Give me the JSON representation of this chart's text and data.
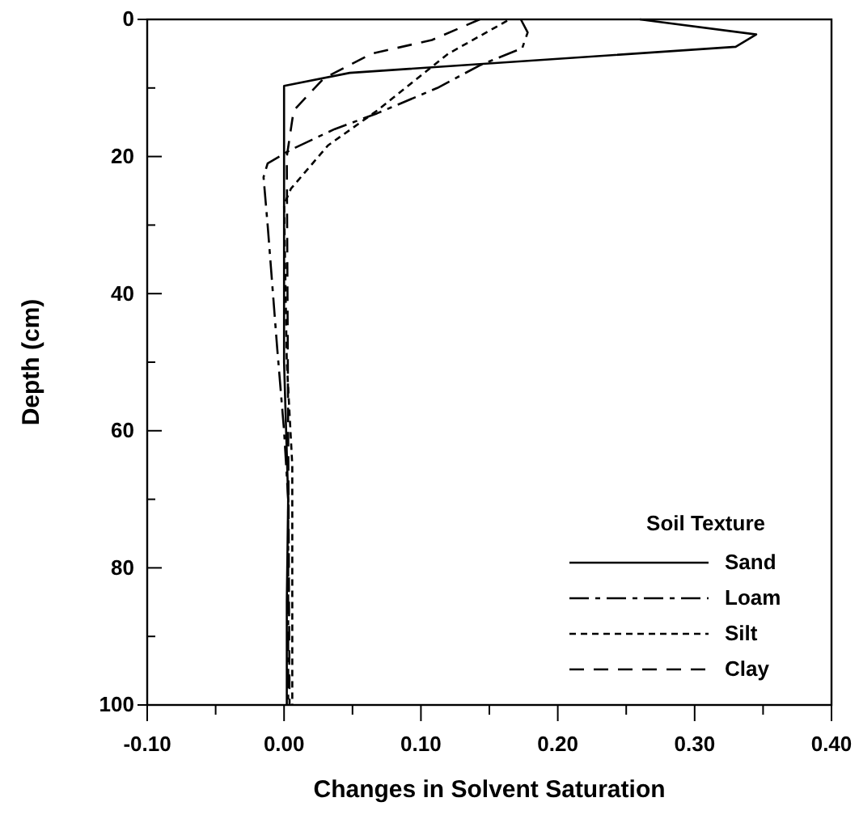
{
  "chart_data": {
    "type": "line",
    "xlabel": "Changes in Solvent Saturation",
    "ylabel": "Depth (cm)",
    "legend_title": "Soil Texture",
    "legend": "bottom right",
    "grid": false,
    "marker": "none",
    "xlim": [
      -0.1,
      0.4
    ],
    "ylim": [
      100,
      0
    ],
    "xticks": [
      {
        "value": -0.1,
        "label": "-0.10"
      },
      {
        "value": -0.05,
        "label": null
      },
      {
        "value": 0,
        "label": "0.00"
      },
      {
        "value": 0.05,
        "label": null
      },
      {
        "value": 0.1,
        "label": "0.10"
      },
      {
        "value": 0.15,
        "label": null
      },
      {
        "value": 0.2,
        "label": "0.20"
      },
      {
        "value": 0.25,
        "label": null
      },
      {
        "value": 0.3,
        "label": "0.30"
      },
      {
        "value": 0.35,
        "label": null
      },
      {
        "value": 0.4,
        "label": "0.40"
      }
    ],
    "yticks": [
      0,
      {
        "value": 10,
        "label": null
      },
      20,
      {
        "value": 30,
        "label": null
      },
      40,
      {
        "value": 50,
        "label": null
      },
      60,
      {
        "value": 70,
        "label": null
      },
      80,
      {
        "value": 90,
        "label": null
      },
      100
    ],
    "series": [
      {
        "name": "Sand",
        "color": "#000000",
        "line_style": "solid",
        "x": [
          0.26,
          0.345,
          0.33,
          0.048,
          0,
          0,
          0.003,
          0.002,
          0.002
        ],
        "values": [
          0,
          2.2,
          4,
          7.8,
          9.7,
          50,
          70,
          85,
          100
        ]
      },
      {
        "name": "Loam",
        "color": "#000000",
        "line_style": "dashdot",
        "x": [
          0.173,
          0.178,
          0.174,
          0.143,
          0.112,
          0.068,
          0.037,
          0.005,
          -0.012,
          -0.015,
          -0.012,
          -0.005,
          0,
          0.003,
          0.003
        ],
        "values": [
          0,
          1.9,
          4.2,
          6.7,
          10,
          13.7,
          16,
          19,
          21,
          23,
          30,
          48,
          60,
          70,
          100
        ]
      },
      {
        "name": "Silt",
        "color": "#000000",
        "line_style": "dotted",
        "x": [
          0.163,
          0.12,
          0.068,
          0.032,
          0.005,
          0,
          0.002,
          0.006,
          0.006
        ],
        "values": [
          0.2,
          5,
          13.3,
          18.4,
          24.7,
          27,
          50,
          65,
          100
        ]
      },
      {
        "name": "Clay",
        "color": "#000000",
        "line_style": "dashed",
        "x": [
          0.143,
          0.108,
          0.064,
          0.029,
          0.007,
          0.002,
          0.003,
          0.004
        ],
        "values": [
          0,
          3,
          5,
          8.6,
          13.3,
          20,
          60,
          100
        ]
      }
    ]
  }
}
